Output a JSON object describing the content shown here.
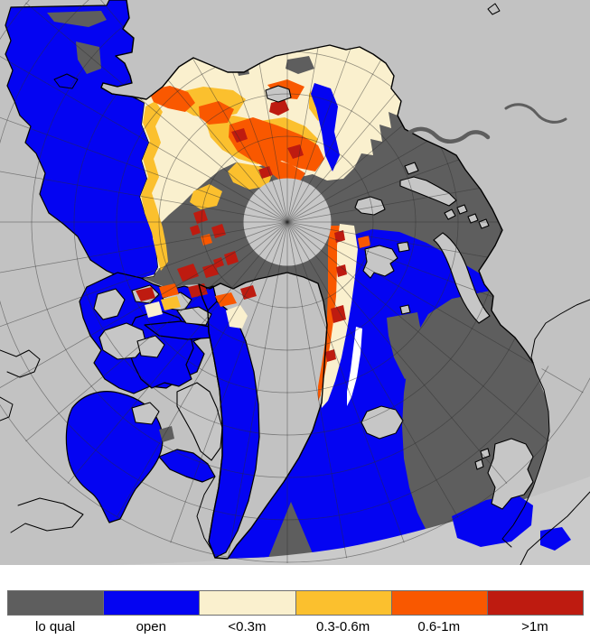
{
  "map": {
    "description": "Arctic polar stereographic sea-ice thickness map",
    "pole_hole": "pole-data-hole",
    "colors": {
      "land": "#c2c2c2",
      "pole_hole": "#c7c7c7",
      "outside_domain": "#cacaca",
      "coastline": "#000000",
      "graticule": "#2e2e2e",
      "low_quality": "#5e5e5e",
      "open_water": "#0404f2",
      "ice_lt_03m": "#faf0ce",
      "ice_03_06m": "#fbc02e",
      "ice_06_1m": "#f95800",
      "ice_gt_1m": "#be1b10"
    }
  },
  "legend": {
    "items": [
      {
        "label": "lo qual",
        "color": "#5e5e5e"
      },
      {
        "label": "open",
        "color": "#0404f2"
      },
      {
        "label": "<0.3m",
        "color": "#faf0ce"
      },
      {
        "label": "0.3-0.6m",
        "color": "#fbc02e"
      },
      {
        "label": "0.6-1m",
        "color": "#f95800"
      },
      {
        "label": ">1m",
        "color": "#be1b10"
      }
    ]
  }
}
